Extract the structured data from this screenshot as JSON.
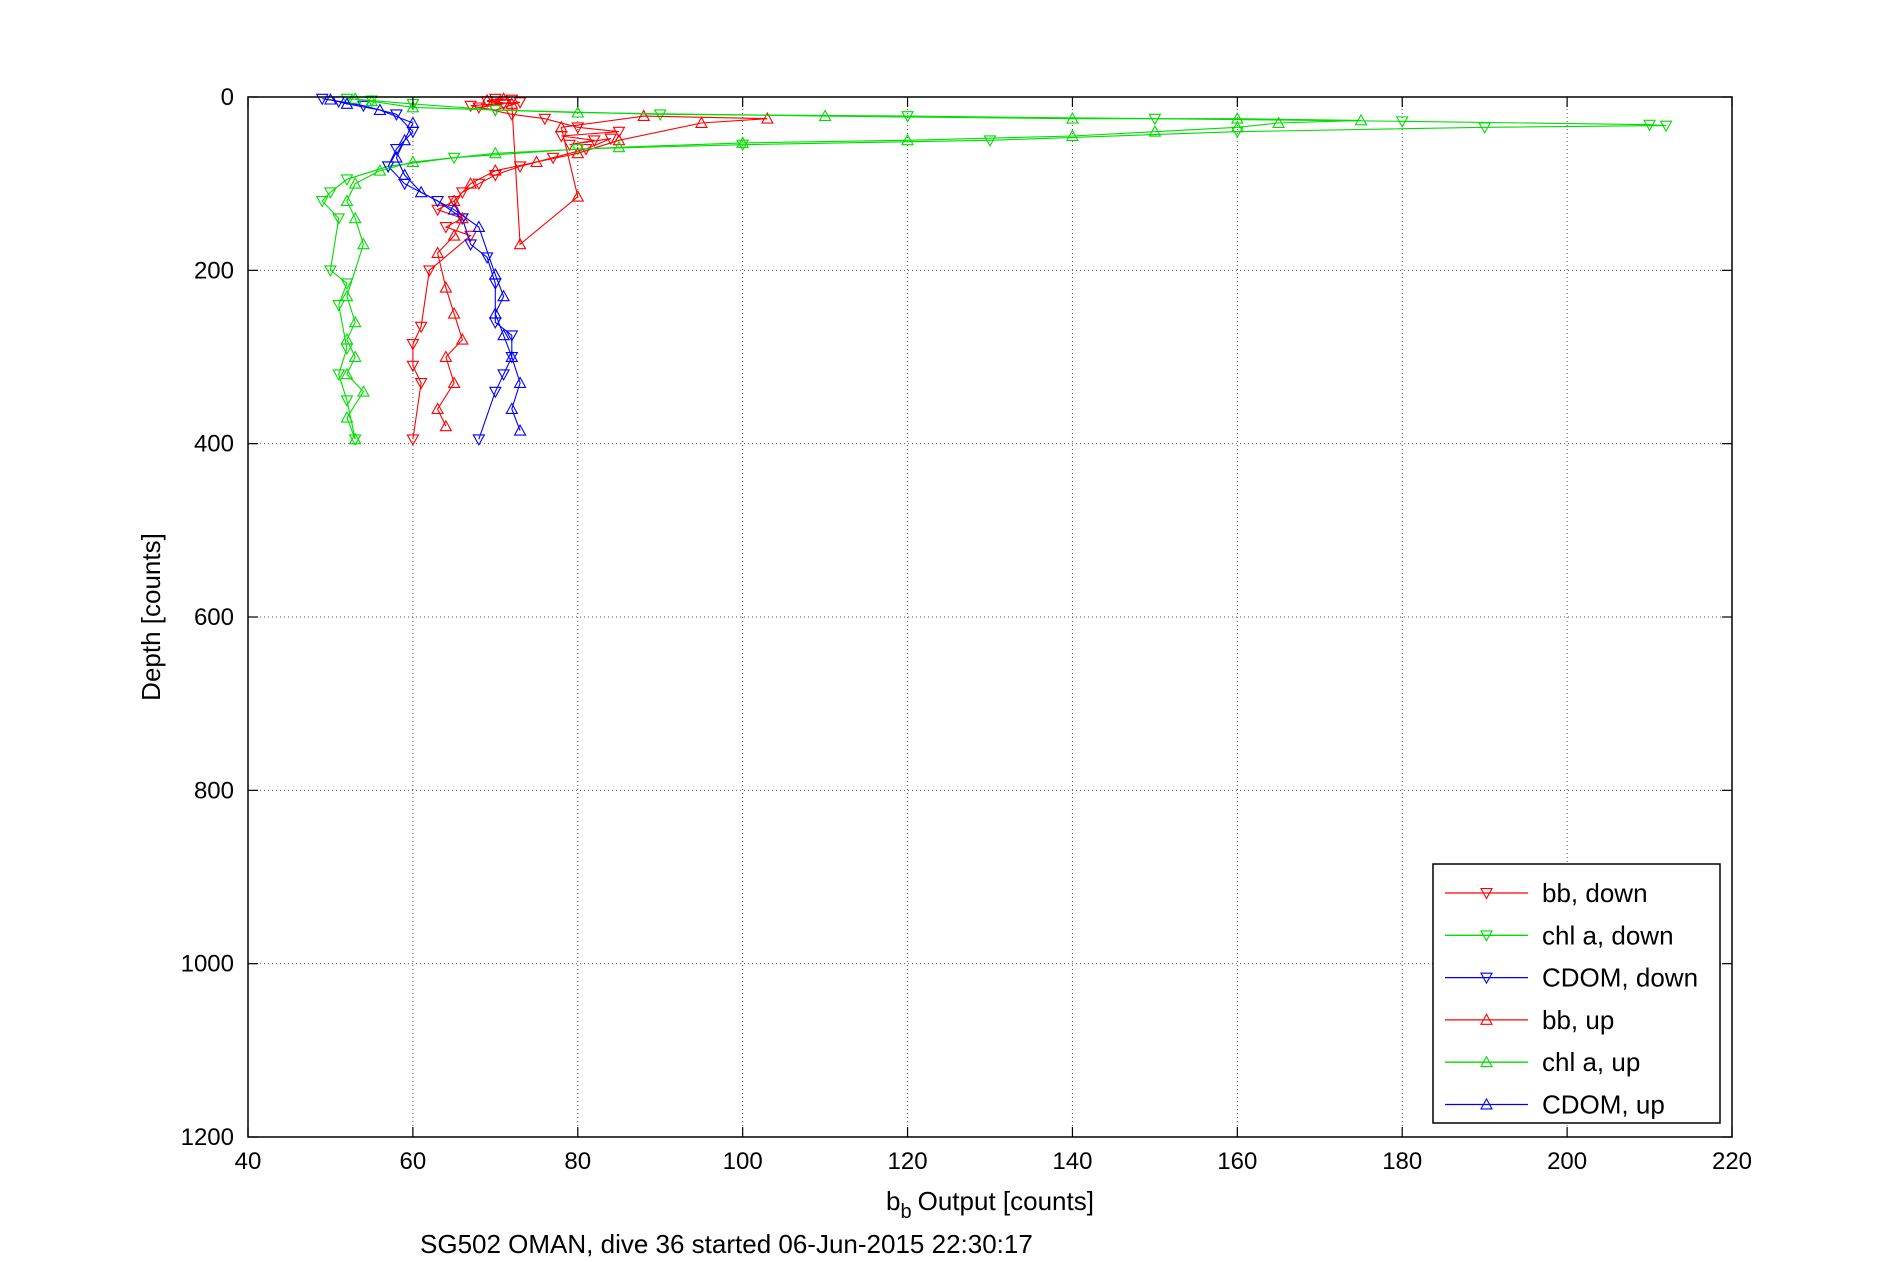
{
  "chart_data": {
    "type": "line",
    "xlabel": "Output [counts]",
    "xlabel_prefix": "b",
    "xlabel_subscript": "b",
    "ylabel": "Depth [counts]",
    "caption": "SG502 OMAN, dive 36 started 06-Jun-2015 22:30:17",
    "xlim": [
      40,
      220
    ],
    "ylim": [
      0,
      1200
    ],
    "y_reversed": true,
    "xticks": [
      40,
      60,
      80,
      100,
      120,
      140,
      160,
      180,
      200,
      220
    ],
    "yticks": [
      0,
      200,
      400,
      600,
      800,
      1000,
      1200
    ],
    "grid": true,
    "legend_position": "bottom-right",
    "series": [
      {
        "name": "bb, down",
        "color": "#ff0000",
        "marker": "triangle-down",
        "points": [
          [
            70,
            2
          ],
          [
            72,
            3
          ],
          [
            69,
            5
          ],
          [
            71,
            8
          ],
          [
            68,
            12
          ],
          [
            70,
            15
          ],
          [
            73,
            6
          ],
          [
            67,
            10
          ],
          [
            72,
            20
          ],
          [
            76,
            25
          ],
          [
            80,
            35
          ],
          [
            85,
            40
          ],
          [
            78,
            45
          ],
          [
            82,
            50
          ],
          [
            79,
            55
          ],
          [
            84,
            48
          ],
          [
            81,
            60
          ],
          [
            77,
            70
          ],
          [
            73,
            80
          ],
          [
            70,
            90
          ],
          [
            68,
            100
          ],
          [
            66,
            110
          ],
          [
            65,
            120
          ],
          [
            63,
            130
          ],
          [
            66,
            140
          ],
          [
            64,
            150
          ],
          [
            67,
            160
          ],
          [
            62,
            200
          ],
          [
            61,
            265
          ],
          [
            60,
            285
          ],
          [
            60,
            310
          ],
          [
            61,
            330
          ],
          [
            60,
            395
          ]
        ]
      },
      {
        "name": "chl a, down",
        "color": "#00dd00",
        "marker": "triangle-down",
        "points": [
          [
            52,
            2
          ],
          [
            55,
            4
          ],
          [
            60,
            8
          ],
          [
            70,
            15
          ],
          [
            90,
            20
          ],
          [
            120,
            22
          ],
          [
            150,
            25
          ],
          [
            180,
            28
          ],
          [
            210,
            32
          ],
          [
            212,
            33
          ],
          [
            190,
            35
          ],
          [
            160,
            40
          ],
          [
            130,
            50
          ],
          [
            100,
            55
          ],
          [
            80,
            60
          ],
          [
            65,
            70
          ],
          [
            57,
            80
          ],
          [
            52,
            95
          ],
          [
            50,
            110
          ],
          [
            49,
            120
          ],
          [
            51,
            140
          ],
          [
            50,
            200
          ],
          [
            52,
            215
          ],
          [
            51,
            240
          ],
          [
            52,
            290
          ],
          [
            51,
            320
          ],
          [
            52,
            350
          ],
          [
            53,
            395
          ]
        ]
      },
      {
        "name": "CDOM, down",
        "color": "#0000ff",
        "marker": "triangle-down",
        "points": [
          [
            49,
            2
          ],
          [
            51,
            5
          ],
          [
            54,
            10
          ],
          [
            58,
            20
          ],
          [
            60,
            40
          ],
          [
            58,
            60
          ],
          [
            57,
            80
          ],
          [
            59,
            100
          ],
          [
            63,
            120
          ],
          [
            66,
            140
          ],
          [
            67,
            170
          ],
          [
            69,
            185
          ],
          [
            70,
            215
          ],
          [
            70,
            260
          ],
          [
            72,
            275
          ],
          [
            72,
            300
          ],
          [
            71,
            320
          ],
          [
            70,
            340
          ],
          [
            68,
            395
          ]
        ]
      },
      {
        "name": "bb, up",
        "color": "#ff0000",
        "marker": "triangle-up",
        "points": [
          [
            64,
            380
          ],
          [
            63,
            360
          ],
          [
            65,
            330
          ],
          [
            64,
            300
          ],
          [
            66,
            280
          ],
          [
            65,
            250
          ],
          [
            64,
            220
          ],
          [
            63,
            180
          ],
          [
            65,
            160
          ],
          [
            66,
            140
          ],
          [
            65,
            120
          ],
          [
            67,
            100
          ],
          [
            70,
            85
          ],
          [
            75,
            75
          ],
          [
            80,
            65
          ],
          [
            85,
            50
          ],
          [
            95,
            30
          ],
          [
            103,
            25
          ],
          [
            88,
            22
          ],
          [
            78,
            35
          ],
          [
            80,
            115
          ],
          [
            73,
            170
          ],
          [
            72,
            8
          ],
          [
            69,
            4
          ],
          [
            71,
            2
          ]
        ]
      },
      {
        "name": "chl a, up",
        "color": "#00dd00",
        "marker": "triangle-up",
        "points": [
          [
            53,
            395
          ],
          [
            52,
            370
          ],
          [
            54,
            340
          ],
          [
            52,
            320
          ],
          [
            53,
            300
          ],
          [
            52,
            280
          ],
          [
            53,
            260
          ],
          [
            52,
            230
          ],
          [
            54,
            170
          ],
          [
            53,
            140
          ],
          [
            52,
            120
          ],
          [
            53,
            100
          ],
          [
            56,
            85
          ],
          [
            60,
            75
          ],
          [
            70,
            65
          ],
          [
            85,
            58
          ],
          [
            100,
            53
          ],
          [
            120,
            50
          ],
          [
            140,
            45
          ],
          [
            150,
            40
          ],
          [
            160,
            35
          ],
          [
            165,
            30
          ],
          [
            175,
            27
          ],
          [
            160,
            25
          ],
          [
            140,
            25
          ],
          [
            110,
            22
          ],
          [
            80,
            18
          ],
          [
            60,
            12
          ],
          [
            55,
            5
          ],
          [
            53,
            2
          ]
        ]
      },
      {
        "name": "CDOM, up",
        "color": "#0000ff",
        "marker": "triangle-up",
        "points": [
          [
            73,
            385
          ],
          [
            72,
            360
          ],
          [
            73,
            330
          ],
          [
            72,
            300
          ],
          [
            71,
            275
          ],
          [
            70,
            250
          ],
          [
            71,
            230
          ],
          [
            70,
            205
          ],
          [
            68,
            150
          ],
          [
            65,
            130
          ],
          [
            61,
            110
          ],
          [
            59,
            90
          ],
          [
            58,
            70
          ],
          [
            59,
            50
          ],
          [
            60,
            30
          ],
          [
            56,
            15
          ],
          [
            52,
            8
          ],
          [
            50,
            3
          ]
        ]
      }
    ]
  }
}
